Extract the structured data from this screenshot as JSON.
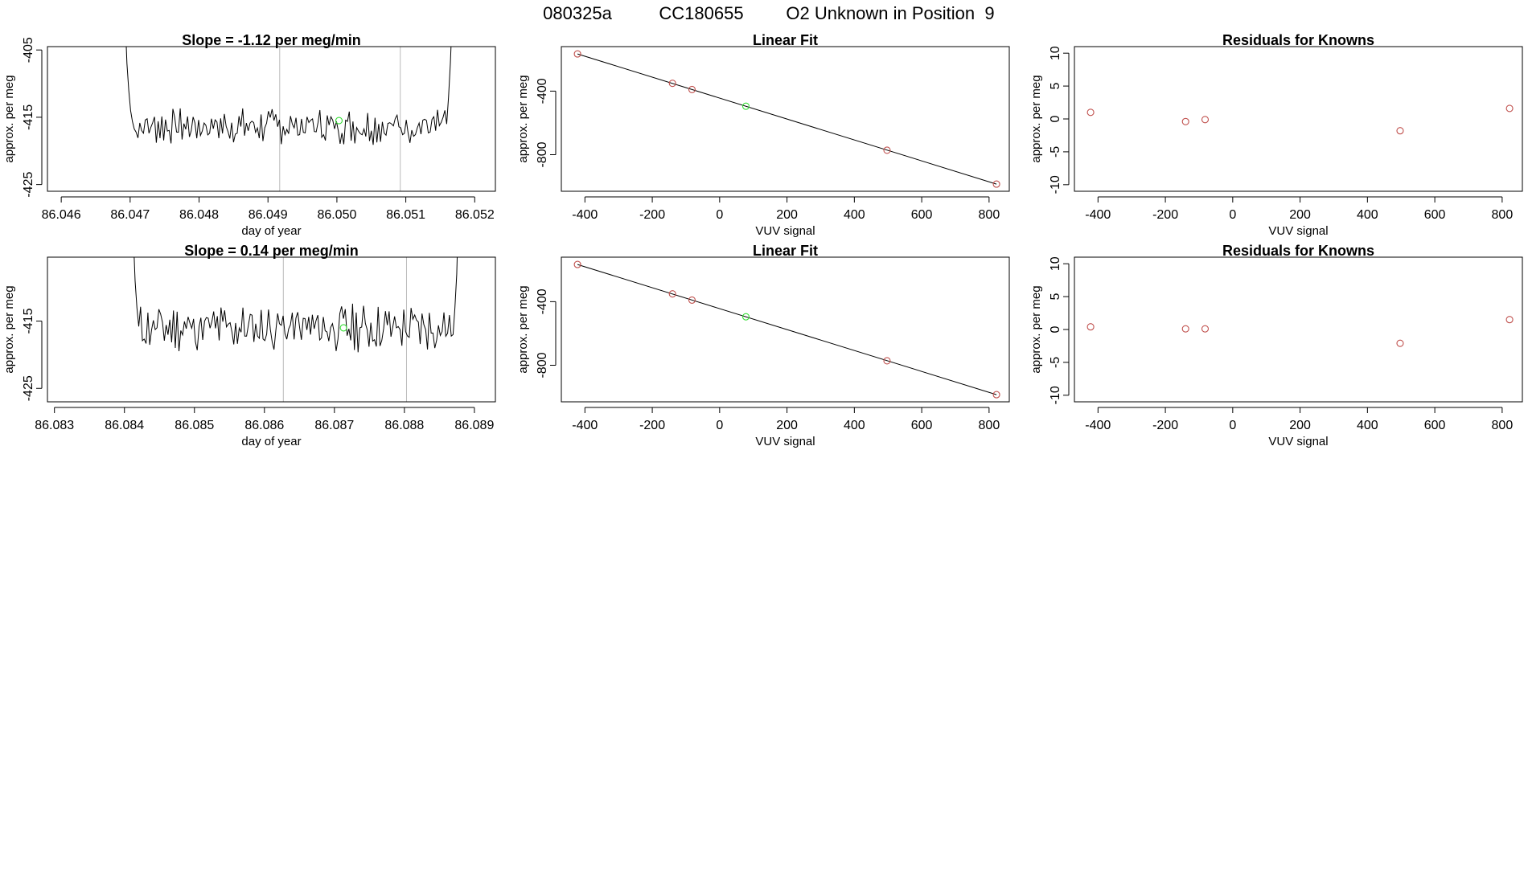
{
  "figure_title": {
    "run_id": "080325a",
    "cylinder": "CC180655",
    "description": "O2 Unknown in Position  9"
  },
  "colors": {
    "line": "#000000",
    "known_point": "#c0504d",
    "unknown_point": "#33dd33",
    "vline": "#bbbbbb"
  },
  "chart_data": [
    {
      "id": "r1_time",
      "type": "line",
      "title": "Slope =  -1.12  per meg/min",
      "xlabel": "day of year",
      "ylabel": "approx. per meg",
      "xlim": [
        86.0458,
        86.0523
      ],
      "ylim": [
        -426,
        -404.5
      ],
      "xticks": [
        86.046,
        86.047,
        86.048,
        86.049,
        86.05,
        86.051,
        86.052
      ],
      "xtick_labels": [
        "86.046",
        "86.047",
        "86.048",
        "86.049",
        "86.050",
        "86.051",
        "86.052"
      ],
      "yticks": [
        -405,
        -415,
        -425
      ],
      "ytick_labels": [
        "-405",
        "-415",
        "-425"
      ],
      "x_start": 86.0469,
      "x_end": 86.0517,
      "head": [
        -380,
        -400,
        -407,
        -411,
        -414
      ],
      "tail": [
        -416,
        -412,
        -407,
        -400,
        -385
      ],
      "base": -416.3,
      "amp": 2.1,
      "n": 180,
      "seed": 7,
      "vlines": [
        86.04917,
        86.05092
      ],
      "markers": [
        {
          "x": 86.05003,
          "y": -415.5,
          "kind": "unknown"
        }
      ]
    },
    {
      "id": "r1_fit",
      "type": "scatter",
      "title": "Linear Fit",
      "xlabel": "VUV signal",
      "ylabel": "approx. per meg",
      "xlim": [
        -470,
        860
      ],
      "ylim": [
        -1030,
        -120
      ],
      "xticks": [
        -400,
        -200,
        0,
        200,
        400,
        600,
        800
      ],
      "xtick_labels": [
        "-400",
        "-200",
        "0",
        "200",
        "400",
        "600",
        "800"
      ],
      "yticks": [
        -400,
        -800
      ],
      "ytick_labels": [
        "-400",
        "-800"
      ],
      "fit_line": [
        [
          -422,
          -166
        ],
        [
          822,
          -985
        ]
      ],
      "points": [
        {
          "x": -422,
          "y": -166,
          "kind": "known"
        },
        {
          "x": -140,
          "y": -351,
          "kind": "known"
        },
        {
          "x": -82,
          "y": -390,
          "kind": "known"
        },
        {
          "x": 78,
          "y": -495,
          "kind": "unknown"
        },
        {
          "x": 497,
          "y": -772,
          "kind": "known"
        },
        {
          "x": 822,
          "y": -985,
          "kind": "known"
        }
      ]
    },
    {
      "id": "r1_resid",
      "type": "scatter",
      "title": "Residuals for Knowns",
      "xlabel": "VUV signal",
      "ylabel": "approx. per meg",
      "xlim": [
        -470,
        860
      ],
      "ylim": [
        -11,
        11
      ],
      "xticks": [
        -400,
        -200,
        0,
        200,
        400,
        600,
        800
      ],
      "xtick_labels": [
        "-400",
        "-200",
        "0",
        "200",
        "400",
        "600",
        "800"
      ],
      "yticks": [
        10,
        5,
        0,
        -5,
        -10
      ],
      "ytick_labels": [
        "10",
        "5",
        "0",
        "-5",
        "-10"
      ],
      "points": [
        {
          "x": -422,
          "y": 1.0,
          "kind": "known"
        },
        {
          "x": -140,
          "y": -0.4,
          "kind": "known"
        },
        {
          "x": -82,
          "y": -0.1,
          "kind": "known"
        },
        {
          "x": 497,
          "y": -1.8,
          "kind": "known"
        },
        {
          "x": 822,
          "y": 1.6,
          "kind": "known"
        }
      ]
    },
    {
      "id": "r2_time",
      "type": "line",
      "title": "Slope =  0.14  per meg/min",
      "xlabel": "day of year",
      "ylabel": "approx. per meg",
      "xlim": [
        86.0829,
        86.0893
      ],
      "ylim": [
        -427,
        -405.5
      ],
      "xticks": [
        86.083,
        86.084,
        86.085,
        86.086,
        86.087,
        86.088,
        86.089
      ],
      "xtick_labels": [
        "86.083",
        "86.084",
        "86.085",
        "86.086",
        "86.087",
        "86.088",
        "86.089"
      ],
      "yticks": [
        -415,
        -425
      ],
      "ytick_labels": [
        "-415",
        "-425"
      ],
      "x_start": 86.0841,
      "x_end": 86.0888,
      "head": [
        -390,
        -402,
        -409,
        -413
      ],
      "tail": [
        -417,
        -413,
        -408,
        -398,
        -388
      ],
      "base": -416.0,
      "amp": 3.0,
      "n": 180,
      "seed": 11,
      "vlines": [
        86.08627,
        86.08803
      ],
      "markers": [
        {
          "x": 86.08713,
          "y": -416.0,
          "kind": "unknown"
        }
      ]
    },
    {
      "id": "r2_fit",
      "type": "scatter",
      "title": "Linear Fit",
      "xlabel": "VUV signal",
      "ylabel": "approx. per meg",
      "xlim": [
        -470,
        860
      ],
      "ylim": [
        -1030,
        -120
      ],
      "xticks": [
        -400,
        -200,
        0,
        200,
        400,
        600,
        800
      ],
      "xtick_labels": [
        "-400",
        "-200",
        "0",
        "200",
        "400",
        "600",
        "800"
      ],
      "yticks": [
        -400,
        -800
      ],
      "ytick_labels": [
        "-400",
        "-800"
      ],
      "fit_line": [
        [
          -422,
          -166
        ],
        [
          822,
          -985
        ]
      ],
      "points": [
        {
          "x": -422,
          "y": -166,
          "kind": "known"
        },
        {
          "x": -140,
          "y": -351,
          "kind": "known"
        },
        {
          "x": -82,
          "y": -390,
          "kind": "known"
        },
        {
          "x": 78,
          "y": -495,
          "kind": "unknown"
        },
        {
          "x": 497,
          "y": -772,
          "kind": "known"
        },
        {
          "x": 822,
          "y": -985,
          "kind": "known"
        }
      ]
    },
    {
      "id": "r2_resid",
      "type": "scatter",
      "title": "Residuals for Knowns",
      "xlabel": "VUV signal",
      "ylabel": "approx. per meg",
      "xlim": [
        -470,
        860
      ],
      "ylim": [
        -11,
        11
      ],
      "xticks": [
        -400,
        -200,
        0,
        200,
        400,
        600,
        800
      ],
      "xtick_labels": [
        "-400",
        "-200",
        "0",
        "200",
        "400",
        "600",
        "800"
      ],
      "yticks": [
        10,
        5,
        0,
        -5,
        -10
      ],
      "ytick_labels": [
        "10",
        "5",
        "0",
        "-5",
        "-10"
      ],
      "points": [
        {
          "x": -422,
          "y": 0.4,
          "kind": "known"
        },
        {
          "x": -140,
          "y": 0.1,
          "kind": "known"
        },
        {
          "x": -82,
          "y": 0.1,
          "kind": "known"
        },
        {
          "x": 497,
          "y": -2.1,
          "kind": "known"
        },
        {
          "x": 822,
          "y": 1.5,
          "kind": "known"
        }
      ]
    }
  ]
}
